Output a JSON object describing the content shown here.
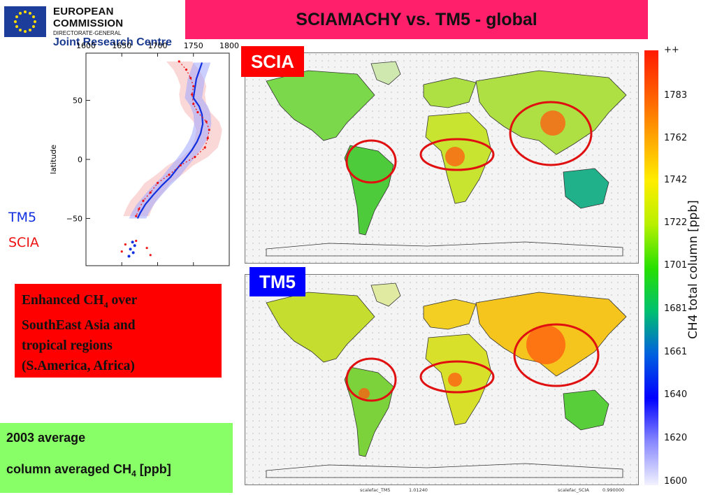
{
  "header": {
    "org_line1": "EUROPEAN COMMISSION",
    "org_line2": "DIRECTORATE-GENERAL",
    "org_line3": "Joint Research Centre",
    "title": "SCIAMACHY vs. TM5 - global",
    "title_bar_color": "#ff1f6a"
  },
  "profile_plot": {
    "x_ticks": [
      "1600",
      "1650",
      "1700",
      "1750",
      "1800"
    ],
    "y_ticks": [
      "50",
      "0",
      "−50"
    ],
    "ylabel": "latitude",
    "series_labels": {
      "tm5": "TM5",
      "scia": "SCIA"
    },
    "series_colors": {
      "tm5": "#1030e0",
      "scia": "#ee1111"
    }
  },
  "chart_data": {
    "type": "line",
    "title": "",
    "xlabel": "",
    "ylabel": "latitude",
    "xlim": [
      1600,
      1800
    ],
    "ylim": [
      -90,
      90
    ],
    "series": [
      {
        "name": "TM5",
        "lat": [
          82,
          75,
          68,
          60,
          52,
          45,
          38,
          30,
          22,
          15,
          8,
          0,
          -8,
          -15,
          -22,
          -30,
          -38,
          -45,
          -50
        ],
        "ch4": [
          1762,
          1758,
          1754,
          1752,
          1750,
          1758,
          1762,
          1763,
          1760,
          1755,
          1748,
          1738,
          1727,
          1718,
          1706,
          1694,
          1683,
          1676,
          1672
        ]
      },
      {
        "name": "SCIA",
        "lat": [
          83,
          76,
          69,
          62,
          55,
          47,
          40,
          32,
          25,
          18,
          10,
          2,
          -5,
          -13,
          -20,
          -28,
          -35,
          -42,
          -48
        ],
        "ch4": [
          1730,
          1740,
          1746,
          1750,
          1748,
          1750,
          1756,
          1768,
          1772,
          1770,
          1766,
          1752,
          1732,
          1716,
          1700,
          1690,
          1680,
          1674,
          1670
        ]
      }
    ],
    "antarctic_points": {
      "tm5": [
        [
          -70,
          1665
        ],
        [
          -73,
          1668
        ],
        [
          -76,
          1662
        ],
        [
          -79,
          1666
        ],
        [
          -82,
          1660
        ]
      ],
      "scia": [
        [
          -69,
          1670
        ],
        [
          -72,
          1655
        ],
        [
          -75,
          1685
        ],
        [
          -78,
          1650
        ],
        [
          -81,
          1690
        ]
      ]
    }
  },
  "maps": {
    "top_label": "SCIA",
    "top_label_color": "#ff0000",
    "bottom_label": "TM5",
    "bottom_label_color": "#0000ff"
  },
  "colorbar": {
    "top_label": "++",
    "ticks": [
      "1783",
      "1762",
      "1742",
      "1722",
      "1701",
      "1681",
      "1661",
      "1640",
      "1620",
      "1600"
    ],
    "title": "CH4  total  column  [ppb]"
  },
  "notes": {
    "red_box_lines": [
      "Enhanced CH",
      "4",
      " over",
      "SouthEast Asia and",
      "tropical regions",
      "(S.America, Africa)"
    ],
    "green_line1": "2003 average",
    "green_line2_main": "column averaged CH",
    "green_line2_sub": "4",
    "green_line2_end": " [ppb]"
  },
  "footer": {
    "left_label": "scalefac_TM5",
    "left_value": "1.01240",
    "right_label": "scalefac_SCIA",
    "right_value": "0.990000"
  }
}
